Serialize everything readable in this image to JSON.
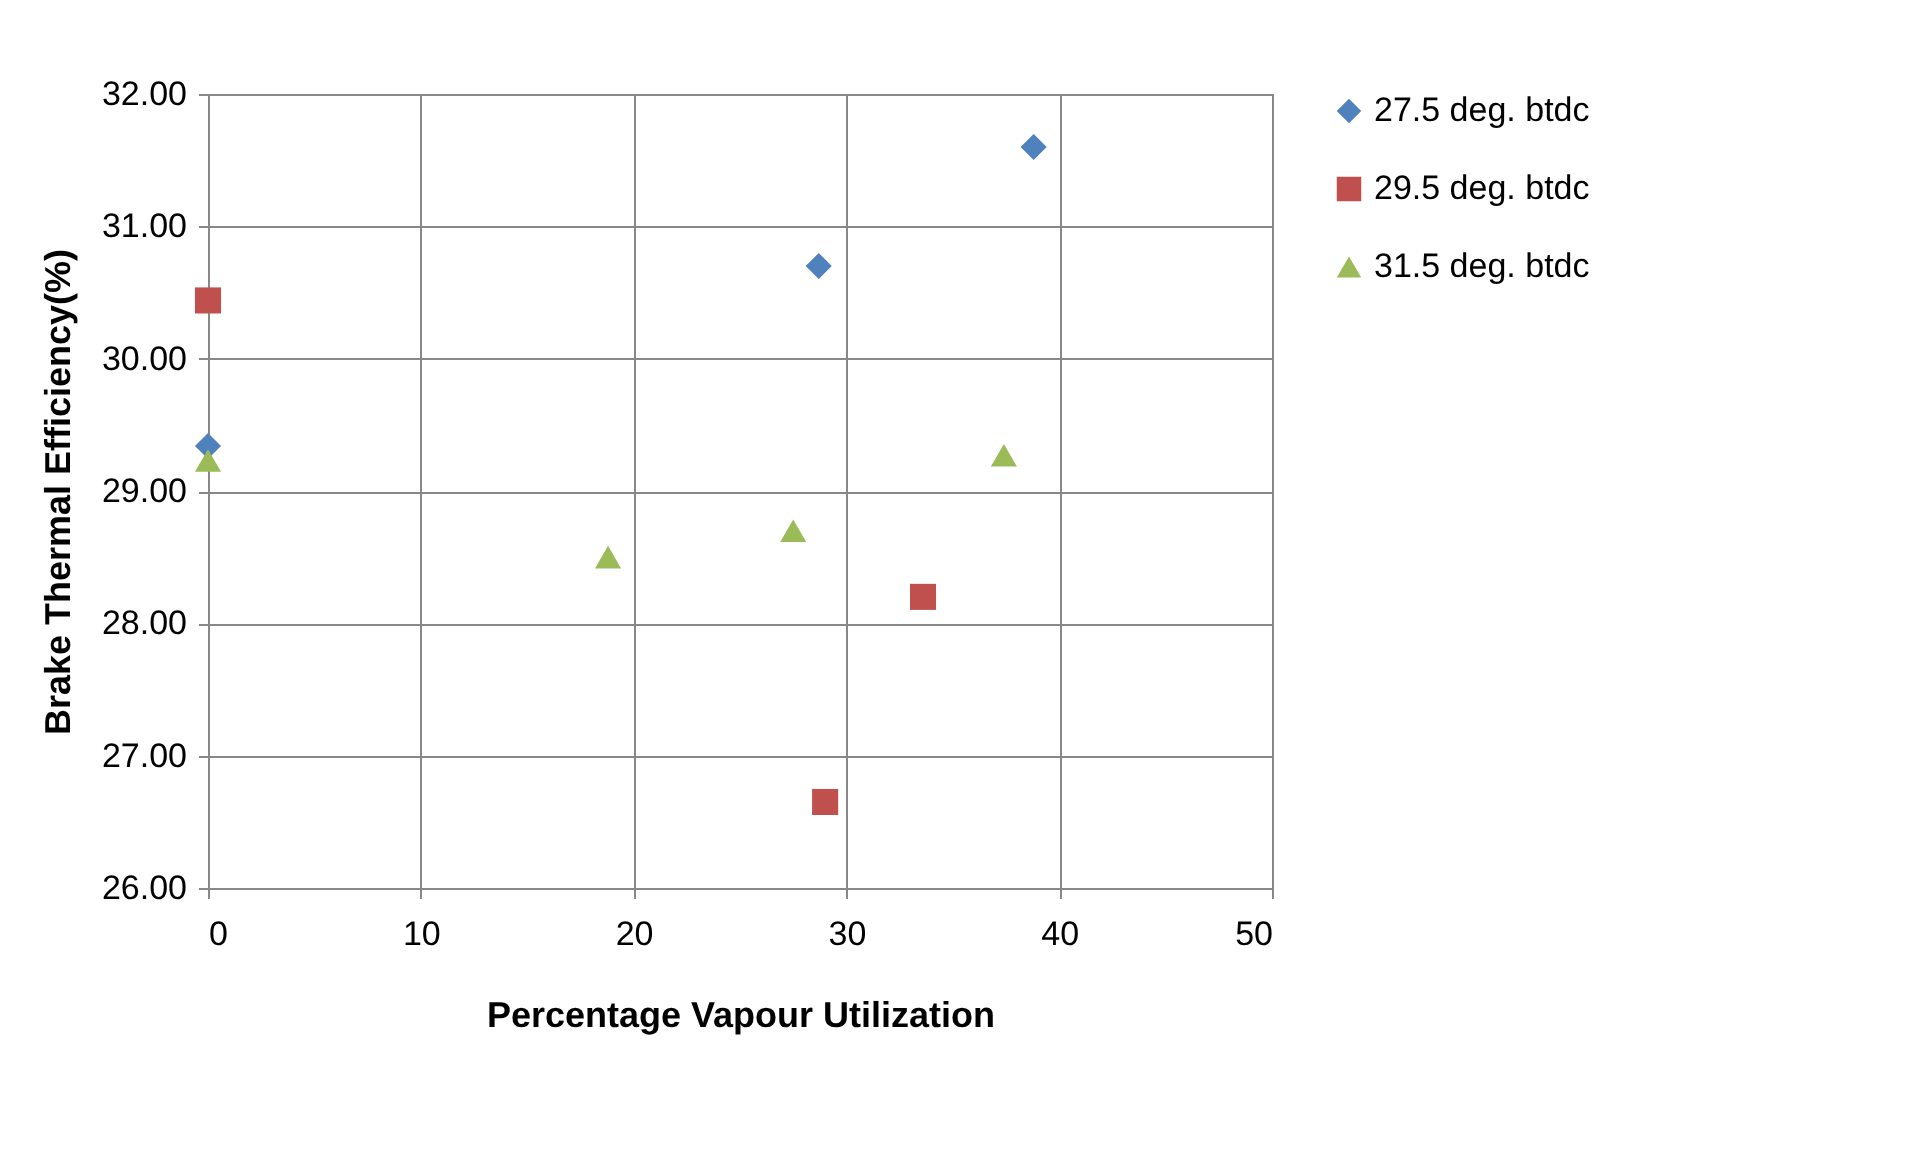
{
  "chart_data": {
    "type": "scatter",
    "xlabel": "Percentage Vapour Utilization",
    "ylabel": "Brake Thermal Efficiency(%)",
    "xlim": [
      0,
      50
    ],
    "xticks": [
      0,
      10,
      20,
      30,
      40,
      50
    ],
    "ylim": [
      26,
      32
    ],
    "yticks": [
      {
        "value": 26,
        "label": "26.00"
      },
      {
        "value": 27,
        "label": "27.00"
      },
      {
        "value": 28,
        "label": "28.00"
      },
      {
        "value": 29,
        "label": "29.00"
      },
      {
        "value": 30,
        "label": "30.00"
      },
      {
        "value": 31,
        "label": "31.00"
      },
      {
        "value": 32,
        "label": "32.00"
      }
    ],
    "grid": true,
    "legend": "right",
    "series": [
      {
        "name": "27.5 deg. btdc",
        "color": "#4f81bd",
        "marker": "diamond",
        "x": [
          0,
          28.7,
          38.8
        ],
        "values": [
          29.34,
          30.7,
          31.6
        ]
      },
      {
        "name": "29.5 deg. btdc",
        "color": "#c0504d",
        "marker": "square",
        "x": [
          0,
          33.6,
          29.0
        ],
        "values": [
          30.44,
          28.2,
          26.65
        ]
      },
      {
        "name": "31.5 deg. btdc",
        "color": "#9bbb59",
        "marker": "triangle",
        "x": [
          0,
          18.8,
          27.5,
          37.4
        ],
        "values": [
          29.23,
          28.5,
          28.7,
          29.27
        ]
      }
    ]
  }
}
